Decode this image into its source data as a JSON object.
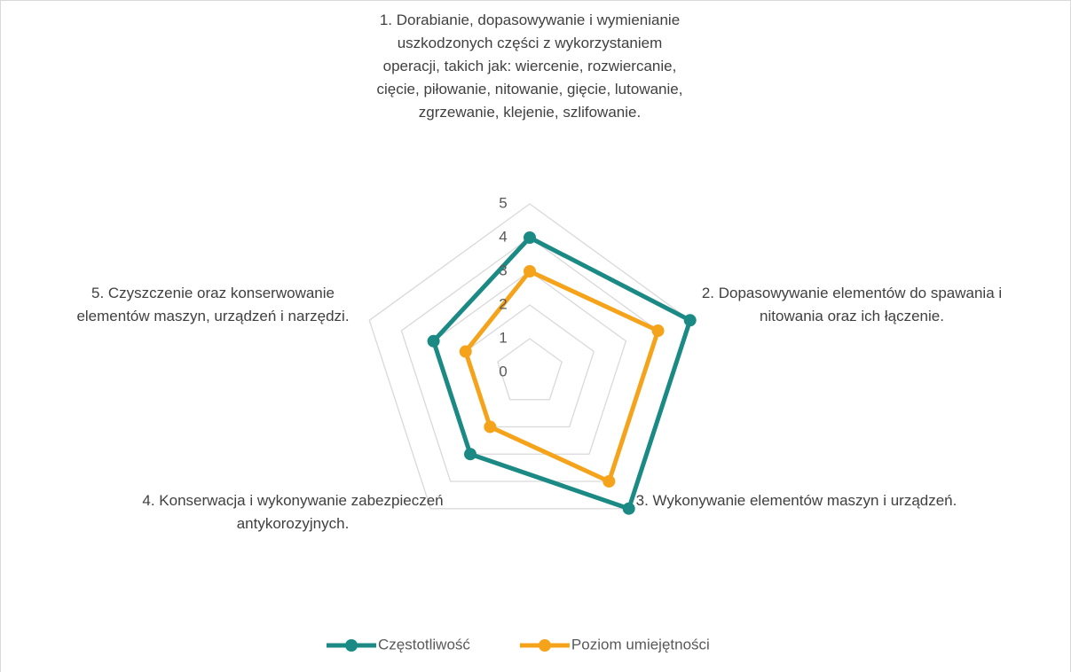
{
  "chart_data": {
    "type": "radar",
    "categories": [
      "1. Dorabianie, dopasowywanie i wymienianie uszkodzonych części z wykorzystaniem operacji, takich jak: wiercenie, rozwiercanie, cięcie, piłowanie, nitowanie, gięcie, lutowanie, zgrzewanie, klejenie, szlifowanie.",
      "2. Dopasowywanie elementów do spawania i nitowania oraz ich łączenie.",
      "3. Wykonywanie elementów maszyn i urządzeń.",
      "4. Konserwacja i wykonywanie zabezpieczeń antykorozyjnych.",
      "5. Czyszczenie oraz konserwowanie elementów maszyn, urządzeń i narzędzi."
    ],
    "series": [
      {
        "name": "Częstotliwość",
        "color": "#1b8a84",
        "values": [
          4,
          5,
          5,
          3,
          3
        ]
      },
      {
        "name": "Poziom  umiejętności",
        "color": "#f5a31a",
        "values": [
          3,
          4,
          4,
          2,
          2
        ]
      }
    ],
    "ylim": [
      0,
      5
    ],
    "yticks": [
      0,
      1,
      2,
      3,
      4,
      5
    ],
    "grid": true,
    "legend": "bottom"
  }
}
